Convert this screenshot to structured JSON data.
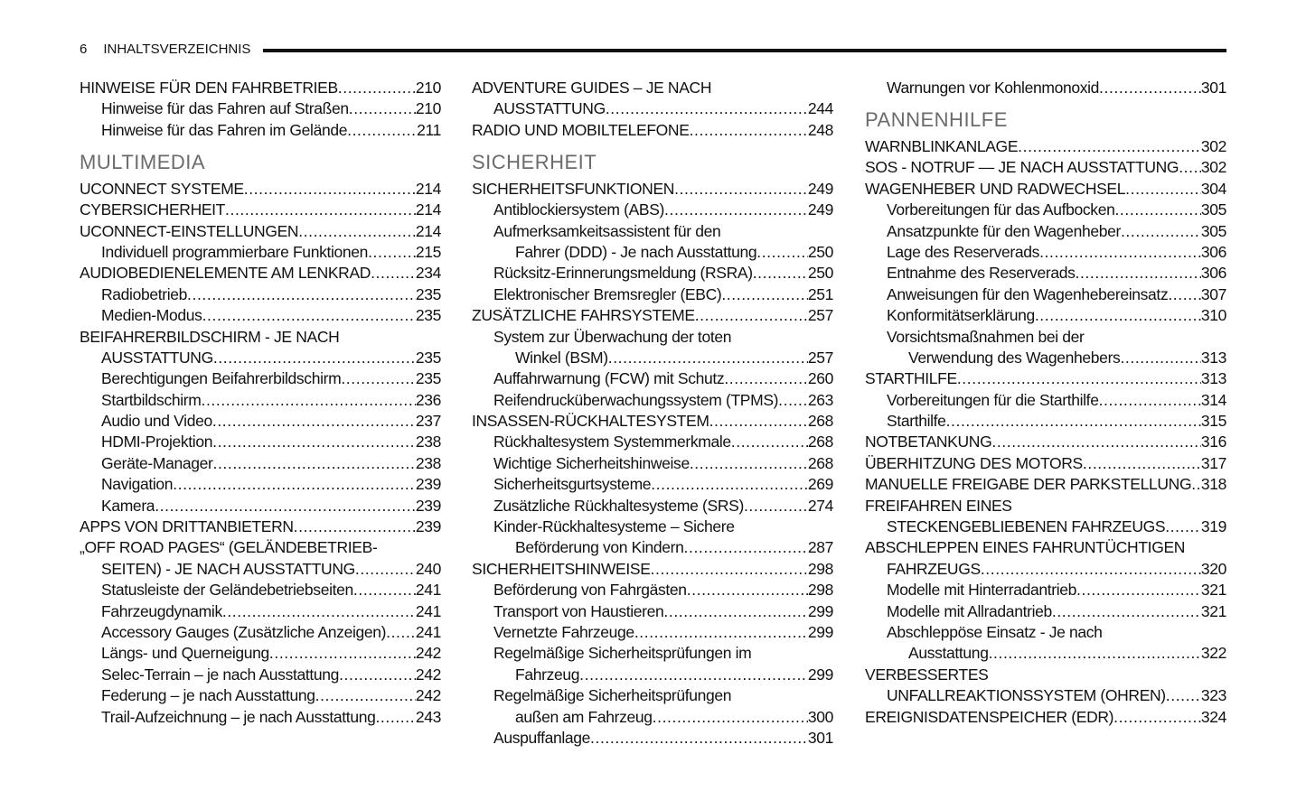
{
  "header": {
    "page_number": "6",
    "title": "INHALTSVERZEICHNIS"
  },
  "columns": [
    [
      {
        "t": "HINWEISE FÜR DEN FAHRBETRIEB",
        "p": "210",
        "l": 0
      },
      {
        "t": "Hinweise für das Fahren auf Straßen",
        "p": "210",
        "l": 1
      },
      {
        "t": "Hinweise für das Fahren im Gelände",
        "p": "211",
        "l": 1
      },
      {
        "h": "MULTIMEDIA"
      },
      {
        "t": "UCONNECT SYSTEME",
        "p": "214",
        "l": 0
      },
      {
        "t": "CYBERSICHERHEIT",
        "p": "214",
        "l": 0
      },
      {
        "t": "UCONNECT-EINSTELLUNGEN",
        "p": "214",
        "l": 0
      },
      {
        "t": "Individuell programmierbare Funktionen",
        "p": "215",
        "l": 1
      },
      {
        "t": "AUDIOBEDIENELEMENTE AM LENKRAD",
        "p": "234",
        "l": 0
      },
      {
        "t": "Radiobetrieb",
        "p": "235",
        "l": 1
      },
      {
        "t": "Medien-Modus",
        "p": "235",
        "l": 1
      },
      {
        "t": "BEIFAHRERBILDSCHIRM - JE NACH",
        "l": 0
      },
      {
        "t": "AUSSTATTUNG",
        "p": "235",
        "l": 1
      },
      {
        "t": "Berechtigungen Beifahrerbildschirm",
        "p": "235",
        "l": 1
      },
      {
        "t": "Startbildschirm",
        "p": "236",
        "l": 1
      },
      {
        "t": "Audio und Video",
        "p": "237",
        "l": 1
      },
      {
        "t": "HDMI-Projektion",
        "p": "238",
        "l": 1
      },
      {
        "t": "Geräte-Manager",
        "p": "238",
        "l": 1
      },
      {
        "t": "Navigation",
        "p": "239",
        "l": 1
      },
      {
        "t": "Kamera",
        "p": "239",
        "l": 1
      },
      {
        "t": "APPS VON DRITTANBIETERN",
        "p": "239",
        "l": 0
      },
      {
        "t": "„OFF ROAD PAGES“ (GELÄNDEBETRIEB-",
        "l": 0
      },
      {
        "t": "SEITEN) - JE NACH AUSSTATTUNG",
        "p": "240",
        "l": 1
      },
      {
        "t": "Statusleiste der Geländebetriebseiten",
        "p": "241",
        "l": 1
      },
      {
        "t": "Fahrzeugdynamik",
        "p": "241",
        "l": 1
      },
      {
        "t": "Accessory Gauges (Zusätzliche Anzeigen)",
        "p": "241",
        "l": 1
      },
      {
        "t": "Längs- und Querneigung",
        "p": "242",
        "l": 1
      },
      {
        "t": "Selec-Terrain – je nach Ausstattung",
        "p": "242",
        "l": 1
      },
      {
        "t": "Federung – je nach Ausstattung",
        "p": "242",
        "l": 1
      },
      {
        "t": "Trail-Aufzeichnung – je nach Ausstattung",
        "p": "243",
        "l": 1
      }
    ],
    [
      {
        "t": "ADVENTURE GUIDES – JE NACH",
        "l": 0
      },
      {
        "t": "AUSSTATTUNG",
        "p": "244",
        "l": 1
      },
      {
        "t": "RADIO UND MOBILTELEFONE",
        "p": "248",
        "l": 0
      },
      {
        "h": "SICHERHEIT"
      },
      {
        "t": "SICHERHEITSFUNKTIONEN",
        "p": "249",
        "l": 0
      },
      {
        "t": "Antiblockiersystem (ABS)",
        "p": "249",
        "l": 1
      },
      {
        "t": "Aufmerksamkeitsassistent für den",
        "l": 1
      },
      {
        "t": "Fahrer (DDD) - Je nach Ausstattung",
        "p": "250",
        "l": 2
      },
      {
        "t": "Rücksitz-Erinnerungsmeldung (RSRA)",
        "p": "250",
        "l": 1
      },
      {
        "t": "Elektronischer Bremsregler (EBC)",
        "p": "251",
        "l": 1
      },
      {
        "t": "ZUSÄTZLICHE FAHRSYSTEME",
        "p": "257",
        "l": 0
      },
      {
        "t": "System zur Überwachung der toten",
        "l": 1
      },
      {
        "t": "Winkel (BSM)",
        "p": "257",
        "l": 2
      },
      {
        "t": "Auffahrwarnung (FCW) mit Schutz",
        "p": "260",
        "l": 1
      },
      {
        "t": "Reifendrucküberwachungssystem (TPMS)",
        "p": "263",
        "l": 1
      },
      {
        "t": "INSASSEN-RÜCKHALTESYSTEM",
        "p": "268",
        "l": 0
      },
      {
        "t": "Rückhaltesystem Systemmerkmale",
        "p": "268",
        "l": 1
      },
      {
        "t": "Wichtige Sicherheitshinweise",
        "p": "268",
        "l": 1
      },
      {
        "t": "Sicherheitsgurtsysteme",
        "p": "269",
        "l": 1
      },
      {
        "t": "Zusätzliche Rückhaltesysteme (SRS)",
        "p": "274",
        "l": 1
      },
      {
        "t": "Kinder-Rückhaltesysteme – Sichere",
        "l": 1
      },
      {
        "t": "Beförderung von Kindern",
        "p": "287",
        "l": 2
      },
      {
        "t": "SICHERHEITSHINWEISE",
        "p": "298",
        "l": 0
      },
      {
        "t": "Beförderung von Fahrgästen",
        "p": "298",
        "l": 1
      },
      {
        "t": "Transport von Haustieren",
        "p": "299",
        "l": 1
      },
      {
        "t": "Vernetzte Fahrzeuge",
        "p": "299",
        "l": 1
      },
      {
        "t": "Regelmäßige Sicherheitsprüfungen im",
        "l": 1
      },
      {
        "t": "Fahrzeug",
        "p": "299",
        "l": 2
      },
      {
        "t": "Regelmäßige Sicherheitsprüfungen",
        "l": 1
      },
      {
        "t": "außen am Fahrzeug",
        "p": "300",
        "l": 2
      },
      {
        "t": "Auspuffanlage",
        "p": "301",
        "l": 1
      }
    ],
    [
      {
        "t": "Warnungen vor Kohlenmonoxid",
        "p": "301",
        "l": 1
      },
      {
        "h": "PANNENHILFE"
      },
      {
        "t": "WARNBLINKANLAGE",
        "p": "302",
        "l": 0
      },
      {
        "t": "SOS - NOTRUF — JE NACH AUSSTATTUNG",
        "p": "302",
        "l": 0
      },
      {
        "t": "WAGENHEBER UND RADWECHSEL",
        "p": "304",
        "l": 0
      },
      {
        "t": "Vorbereitungen für das Aufbocken",
        "p": "305",
        "l": 1
      },
      {
        "t": "Ansatzpunkte für den Wagenheber",
        "p": "305",
        "l": 1
      },
      {
        "t": "Lage des Reserverads",
        "p": "306",
        "l": 1
      },
      {
        "t": "Entnahme des Reserverads",
        "p": "306",
        "l": 1
      },
      {
        "t": "Anweisungen für den Wagenhebereinsatz",
        "p": "307",
        "l": 1
      },
      {
        "t": "Konformitätserklärung",
        "p": "310",
        "l": 1
      },
      {
        "t": "Vorsichtsmaßnahmen bei der",
        "l": 1
      },
      {
        "t": "Verwendung des Wagenhebers",
        "p": "313",
        "l": 2
      },
      {
        "t": "STARTHILFE",
        "p": "313",
        "l": 0
      },
      {
        "t": "Vorbereitungen für die Starthilfe",
        "p": "314",
        "l": 1
      },
      {
        "t": "Starthilfe",
        "p": "315",
        "l": 1
      },
      {
        "t": "NOTBETANKUNG",
        "p": "316",
        "l": 0
      },
      {
        "t": "ÜBERHITZUNG DES MOTORS",
        "p": "317",
        "l": 0
      },
      {
        "t": "MANUELLE FREIGABE DER PARKSTELLUNG",
        "p": "318",
        "l": 0
      },
      {
        "t": "FREIFAHREN EINES",
        "l": 0
      },
      {
        "t": "STECKENGEBLIEBENEN FAHRZEUGS",
        "p": "319",
        "l": 1
      },
      {
        "t": "ABSCHLEPPEN EINES FAHRUNTÜCHTIGEN",
        "l": 0
      },
      {
        "t": "FAHRZEUGS",
        "p": "320",
        "l": 1
      },
      {
        "t": "Modelle mit Hinterradantrieb",
        "p": "321",
        "l": 1
      },
      {
        "t": "Modelle mit Allradantrieb",
        "p": "321",
        "l": 1
      },
      {
        "t": "Abschleppöse Einsatz - Je nach",
        "l": 1
      },
      {
        "t": "Ausstattung",
        "p": "322",
        "l": 2
      },
      {
        "t": "VERBESSERTES",
        "l": 0
      },
      {
        "t": "UNFALLREAKTIONSSYSTEM (OHREN)",
        "p": "323",
        "l": 1
      },
      {
        "t": "EREIGNISDATENSPEICHER (EDR)",
        "p": "324",
        "l": 0
      }
    ]
  ]
}
